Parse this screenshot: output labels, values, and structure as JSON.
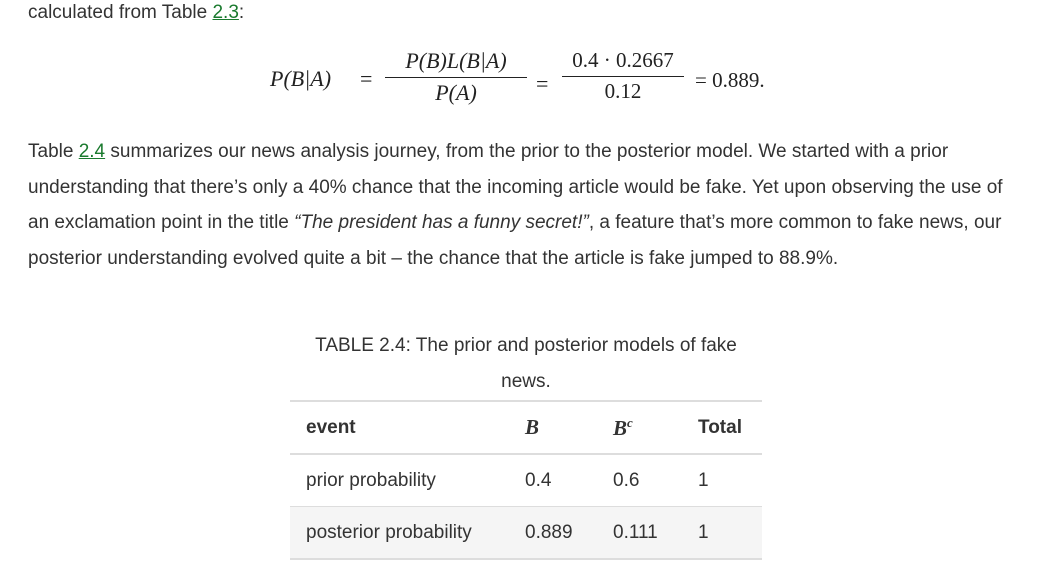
{
  "intro": {
    "text": "calculated from Table ",
    "ref": "2.3",
    "tail": ":"
  },
  "equation": {
    "lhs": "P(B|A)",
    "eq1": "=",
    "frac1_num": "P(B)L(B|A)",
    "frac1_den": "P(A)",
    "eq2": "=",
    "frac2_num": "0.4 · 0.2667",
    "frac2_den": "0.12",
    "result": "= 0.889."
  },
  "paragraph": {
    "t1": "Table ",
    "ref": "2.4",
    "t2": " summarizes our news analysis journey, from the prior to the posterior model. We started with a prior understanding that there’s only a 40% chance that the incoming article would be fake. Yet upon observing the use of an exclamation point in the title ",
    "quote": "“The president has a funny secret!”",
    "t3": ", a feature that’s more common to fake news, our posterior understanding evolved quite a bit – the chance that the article is fake jumped to 88.9%."
  },
  "table": {
    "caption": "TABLE 2.4: The prior and posterior models of fake news.",
    "headers": {
      "event": "event",
      "b": "B",
      "bc_base": "B",
      "bc_sup": "c",
      "total": "Total"
    },
    "rows": [
      {
        "event": "prior probability",
        "b": "0.4",
        "bc": "0.6",
        "total": "1"
      },
      {
        "event": "posterior probability",
        "b": "0.889",
        "bc": "0.111",
        "total": "1"
      }
    ]
  }
}
